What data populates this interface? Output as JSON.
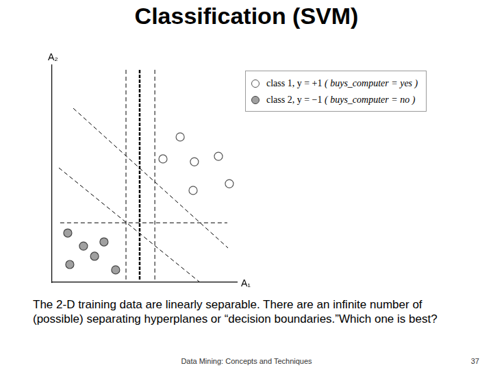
{
  "slide": {
    "title": "Classification (SVM)",
    "caption": "The 2-D training data are linearly separable. There are an infinite number of (possible) separating hyperplanes or “decision boundaries.”Which one is best?",
    "footer": "Data Mining: Concepts and Techniques",
    "page": 37
  },
  "chart_data": {
    "type": "scatter",
    "x_label": "A₁",
    "y_label": "A₂",
    "xlim": [
      0,
      10
    ],
    "ylim": [
      0,
      10
    ],
    "grid": false,
    "tick_labels": false,
    "legend": "upper right",
    "series": [
      {
        "name": "class 1, y = +1 ( buys_computer = yes )",
        "color": "#555555",
        "marker": "open_circle",
        "x": [
          6.93,
          6.0,
          7.7,
          9.0,
          7.63,
          9.59
        ],
        "y": [
          6.69,
          5.68,
          5.55,
          5.8,
          4.23,
          4.54
        ]
      },
      {
        "name": "class 2, y = −1 ( buys_computer = no )",
        "color": "#a0a0a0",
        "marker": "filled_circle",
        "x": [
          0.85,
          1.7,
          2.81,
          2.3,
          0.96,
          3.44
        ],
        "y": [
          2.27,
          1.67,
          1.86,
          1.2,
          0.82,
          0.57
        ]
      },
      {
        "type": "line",
        "color": "#000000",
        "line_style": "dashed",
        "x": [
          4.0,
          4.0
        ],
        "y": [
          0.13,
          9.84
        ]
      },
      {
        "type": "line",
        "color": "#000000",
        "line_style": "bold_dashed",
        "x": [
          4.74,
          4.74
        ],
        "y": [
          0.13,
          9.84
        ]
      },
      {
        "type": "line",
        "color": "#000000",
        "line_style": "dashed",
        "x": [
          5.56,
          5.56
        ],
        "y": [
          0.13,
          9.84
        ]
      },
      {
        "type": "line",
        "color": "#000000",
        "line_style": "dashed",
        "x": [
          0.44,
          9.48
        ],
        "y": [
          2.74,
          2.74
        ]
      },
      {
        "type": "line",
        "color": "#000000",
        "line_style": "dashed",
        "x": [
          1.15,
          9.52
        ],
        "y": [
          8.01,
          1.58
        ]
      },
      {
        "type": "line",
        "color": "#000000",
        "line_style": "dashed",
        "x": [
          0.37,
          8.0
        ],
        "y": [
          5.27,
          0.0
        ]
      }
    ]
  }
}
